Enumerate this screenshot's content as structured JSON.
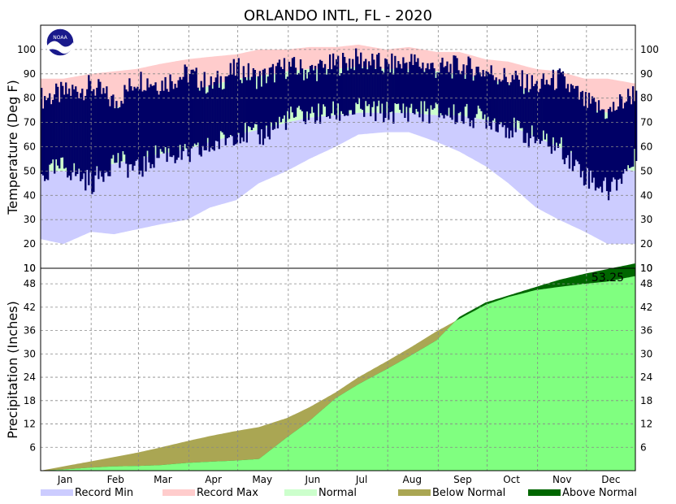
{
  "chart_data": [
    {
      "type": "bar",
      "title": "ORLANDO INTL, FL - 2020",
      "ylabel": "Temperature (Deg F)",
      "ylim": [
        10,
        110
      ],
      "yticks": [
        100,
        90,
        80,
        70,
        60,
        50,
        40,
        30,
        20,
        10
      ],
      "x_month_labels": [
        "Jan",
        "Feb",
        "Mar",
        "Apr",
        "May",
        "Jun",
        "Jul",
        "Aug",
        "Sep",
        "Oct",
        "Nov",
        "Dec"
      ],
      "grid": true,
      "x_day_of_year": [
        1,
        15,
        32,
        46,
        60,
        74,
        91,
        105,
        121,
        135,
        152,
        166,
        182,
        196,
        213,
        227,
        244,
        258,
        274,
        288,
        305,
        319,
        335,
        349,
        366
      ],
      "normal_high": [
        72,
        72,
        74,
        76,
        78,
        80,
        83,
        85,
        88,
        89,
        91,
        92,
        92,
        93,
        92,
        92,
        91,
        90,
        88,
        86,
        82,
        80,
        76,
        74,
        72
      ],
      "normal_low": [
        50,
        50,
        51,
        53,
        55,
        57,
        59,
        62,
        65,
        67,
        70,
        72,
        73,
        74,
        74,
        74,
        73,
        73,
        71,
        69,
        64,
        60,
        55,
        52,
        50
      ],
      "record_high": [
        88,
        88,
        90,
        91,
        92,
        94,
        96,
        97,
        98,
        100,
        100,
        101,
        101,
        102,
        100,
        101,
        99,
        99,
        96,
        95,
        92,
        91,
        88,
        88,
        86
      ],
      "record_low": [
        22,
        20,
        25,
        24,
        26,
        28,
        30,
        35,
        38,
        45,
        50,
        55,
        60,
        65,
        66,
        66,
        62,
        58,
        52,
        45,
        35,
        30,
        25,
        20,
        20
      ],
      "actual_high": [
        80,
        82,
        85,
        78,
        88,
        86,
        90,
        85,
        92,
        88,
        93,
        91,
        94,
        96,
        93,
        95,
        92,
        93,
        91,
        88,
        85,
        88,
        78,
        74,
        83
      ],
      "actual_low": [
        48,
        52,
        45,
        55,
        50,
        58,
        56,
        60,
        66,
        64,
        72,
        73,
        74,
        75,
        74,
        75,
        74,
        73,
        72,
        68,
        63,
        60,
        48,
        42,
        55
      ],
      "series": [
        {
          "name": "Record Min"
        },
        {
          "name": "Record Max"
        },
        {
          "name": "Normal"
        }
      ]
    },
    {
      "type": "area",
      "ylabel": "Precipitation (Inches)",
      "ylim": [
        0,
        52
      ],
      "yticks": [
        48,
        42,
        36,
        30,
        24,
        18,
        12,
        6
      ],
      "top_label": "10",
      "annotation": "53.25",
      "grid": true,
      "x_day_of_year": [
        1,
        15,
        32,
        46,
        60,
        74,
        91,
        105,
        121,
        135,
        152,
        166,
        182,
        196,
        213,
        227,
        244,
        258,
        274,
        288,
        305,
        319,
        335,
        349,
        366
      ],
      "normal_cumulative": [
        0,
        1.1,
        2.4,
        3.5,
        4.6,
        5.9,
        7.6,
        8.9,
        10.2,
        11.2,
        13.5,
        16.3,
        20.1,
        24.0,
        28.0,
        31.4,
        35.8,
        39.0,
        42.6,
        44.6,
        46.4,
        47.2,
        48.0,
        48.6,
        50.0
      ],
      "actual_cumulative": [
        0,
        0.3,
        0.8,
        1.1,
        1.2,
        1.4,
        2.0,
        2.3,
        2.6,
        3.0,
        8.5,
        12.8,
        18.6,
        22.2,
        26.0,
        29.3,
        33.5,
        39.5,
        43.2,
        45.0,
        47.2,
        49.0,
        50.6,
        51.8,
        53.25
      ],
      "series": [
        {
          "name": "Below Normal"
        },
        {
          "name": "Above Normal"
        }
      ]
    }
  ],
  "legend": [
    {
      "label": "Record Min",
      "color": "#ccccff"
    },
    {
      "label": "Record Max",
      "color": "#ffcccc"
    },
    {
      "label": "Normal",
      "color": "#ccffcc"
    },
    {
      "label": "Below Normal",
      "color": "#aaa653"
    },
    {
      "label": "Above Normal",
      "color": "#006600"
    }
  ],
  "colors": {
    "record_min": "#ccccff",
    "record_max": "#ffcccc",
    "normal": "#ccffcc",
    "actual": "#000066",
    "precip_fill": "#80ff80",
    "below_normal": "#aaa653",
    "above_normal": "#006600",
    "grid": "#888888"
  },
  "logo_text": "NOAA"
}
